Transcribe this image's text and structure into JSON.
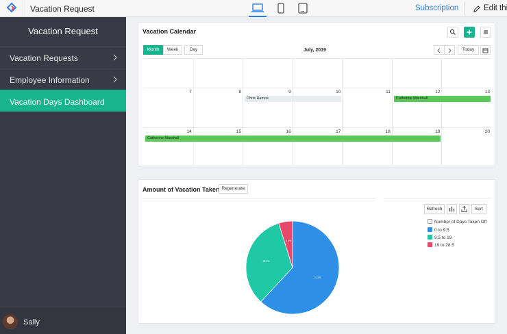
{
  "topbar": {
    "app_title": "Vacation Request",
    "devices": [
      "desktop-icon",
      "mobile-icon",
      "tablet-icon"
    ],
    "subscription_label": "Subscription",
    "edit_label": "Edit this"
  },
  "sidebar": {
    "title": "Vacation Request",
    "items": [
      {
        "label": "Vacation Requests",
        "has_submenu": true,
        "active": false
      },
      {
        "label": "Employee Information",
        "has_submenu": true,
        "active": false
      },
      {
        "label": "Vacation Days Dashboard",
        "has_submenu": false,
        "active": true
      }
    ],
    "user_name": "Sally"
  },
  "calendar": {
    "title": "Vacation Calendar",
    "views": [
      "Month",
      "Week",
      "Day"
    ],
    "active_view": "Month",
    "month_label": "July, 2019",
    "today_label": "Today",
    "weeks": [
      [
        "",
        "",
        "",
        "",
        "",
        "",
        ""
      ],
      [
        "7",
        "8",
        "9",
        "10",
        "11",
        "12",
        "13"
      ],
      [
        "14",
        "15",
        "16",
        "17",
        "18",
        "19",
        "20"
      ]
    ],
    "events": [
      {
        "name": "Chris Ramos",
        "week": 1,
        "start_col": 2,
        "end_col": 3,
        "color": "#e9ecee"
      },
      {
        "name": "Catherine Marshall",
        "week": 1,
        "start_col": 5,
        "end_col": 6,
        "color": "#5cc85a"
      },
      {
        "name": "Catherine Marshall",
        "week": 2,
        "start_col": 0,
        "end_col": 5,
        "color": "#5cc85a"
      }
    ]
  },
  "vacation_chart": {
    "title": "Amount of Vacation Taken",
    "regenerate_label": "Regenerate",
    "refresh_label": "Refresh",
    "sort_label": "Sort",
    "legend_title": "Number of Days Taken Off",
    "colors": {
      "blue": "#2d8fe6",
      "teal": "#20c9a6",
      "red": "#e8476a"
    }
  },
  "chart_data": {
    "type": "pie",
    "title": "Amount of Vacation Taken",
    "legend_title": "Number of Days Taken Off",
    "labels": [
      "0 to 9.5",
      "9.5 to 19",
      "19 to 28.5"
    ],
    "values": [
      61.9,
      33.3,
      4.8
    ],
    "value_labels": [
      "61.9%",
      "33.3%",
      "4.8%"
    ],
    "colors": [
      "#2d8fe6",
      "#20c9a6",
      "#e8476a"
    ],
    "legend_position": "top-right"
  }
}
